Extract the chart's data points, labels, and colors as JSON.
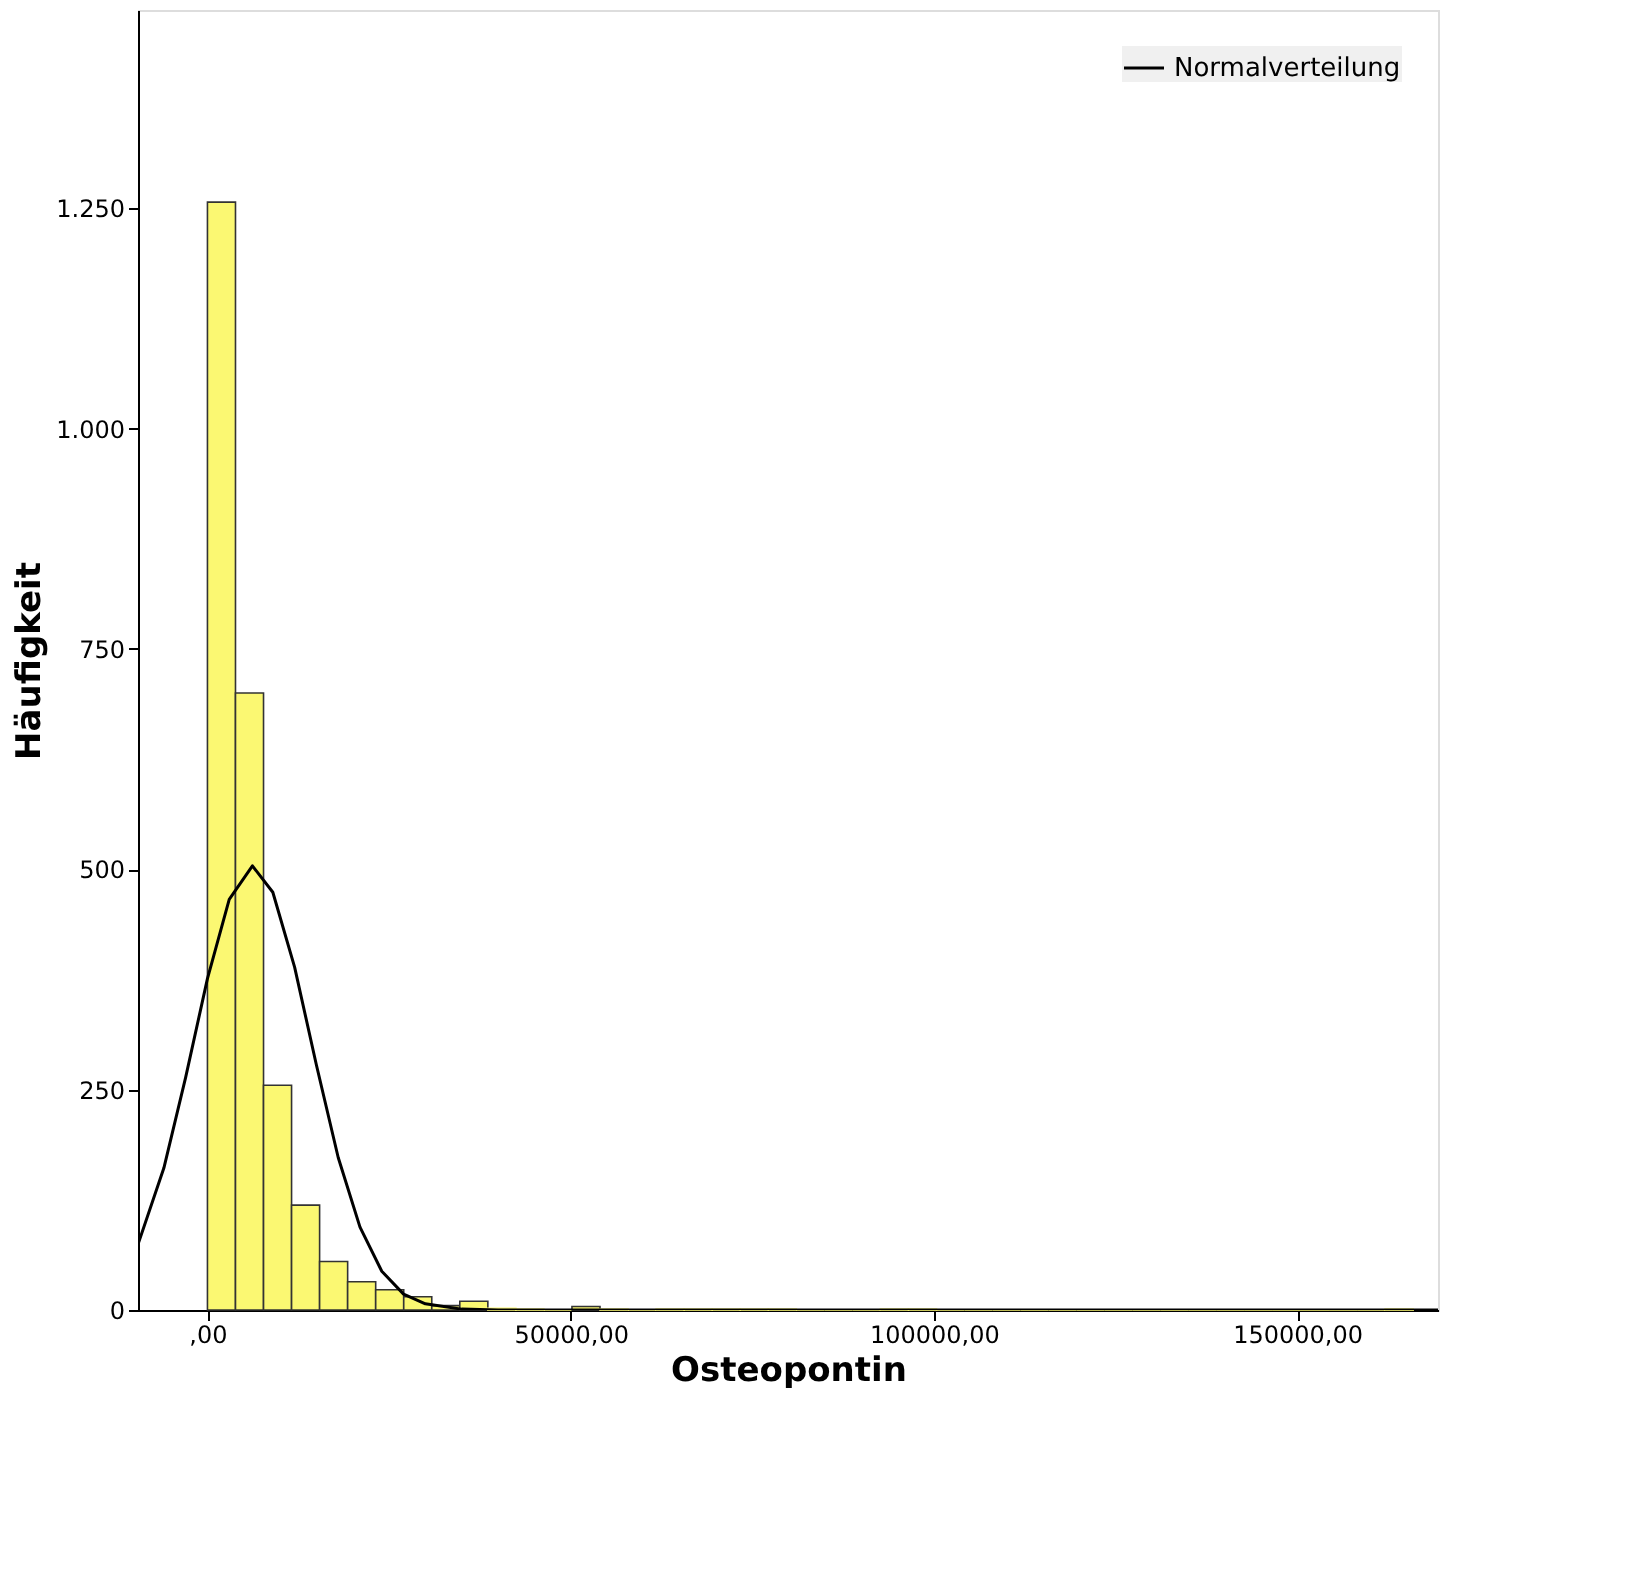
{
  "chart_data": {
    "type": "histogram",
    "xlabel": "Osteopontin",
    "ylabel": "Häufigkeit",
    "bins": [
      0,
      3860,
      7720,
      11580,
      15440,
      19300,
      23160,
      27020,
      30880,
      34740,
      38600,
      42460,
      46320,
      50180,
      54040,
      57900,
      61760,
      65620,
      69480,
      73340,
      77200,
      81060,
      84920,
      88780,
      92640,
      96500,
      100360,
      104220,
      108080,
      111940,
      115800,
      119660,
      123520,
      127380,
      131240,
      135100,
      138960,
      142820,
      146680,
      150540,
      154400,
      158260,
      162120,
      165980
    ],
    "values": [
      1257,
      700,
      255,
      119,
      55,
      32,
      23,
      15,
      5,
      10,
      2,
      1,
      0,
      4,
      1,
      0,
      1,
      1,
      1,
      1,
      1,
      0,
      0,
      0,
      1,
      1,
      0,
      0,
      0,
      0,
      0,
      0,
      0,
      0,
      0,
      0,
      0,
      0,
      0,
      0,
      0,
      0,
      1
    ],
    "color": "#fbf872",
    "series": [
      {
        "name": "Normalverteilung",
        "type": "line",
        "color": "#000000",
        "line_style": "solid",
        "x": [
          -9500,
          -6000,
          -3000,
          0,
          3000,
          6190,
          9000,
          12000,
          15000,
          18000,
          21000,
          24000,
          27000,
          30000,
          35000,
          40000,
          169400
        ],
        "values": [
          76,
          161,
          264,
          376,
          466,
          504,
          474,
          389,
          278,
          173,
          94,
          44,
          18,
          7,
          1,
          0,
          0
        ]
      }
    ],
    "xlim": [
      -9560,
      169400
    ],
    "ylim": [
      0,
      1475
    ],
    "xticks": [
      {
        "value": 0,
        "label": ",00"
      },
      {
        "value": 50000,
        "label": "50000,00"
      },
      {
        "value": 100000,
        "label": "100000,00"
      },
      {
        "value": 150000,
        "label": "150000,00"
      }
    ],
    "yticks": [
      0,
      250,
      500,
      750,
      {
        "value": 1000,
        "label": "1.000"
      },
      {
        "value": 1250,
        "label": "1.250"
      }
    ],
    "grid": false,
    "legend": "top right"
  }
}
